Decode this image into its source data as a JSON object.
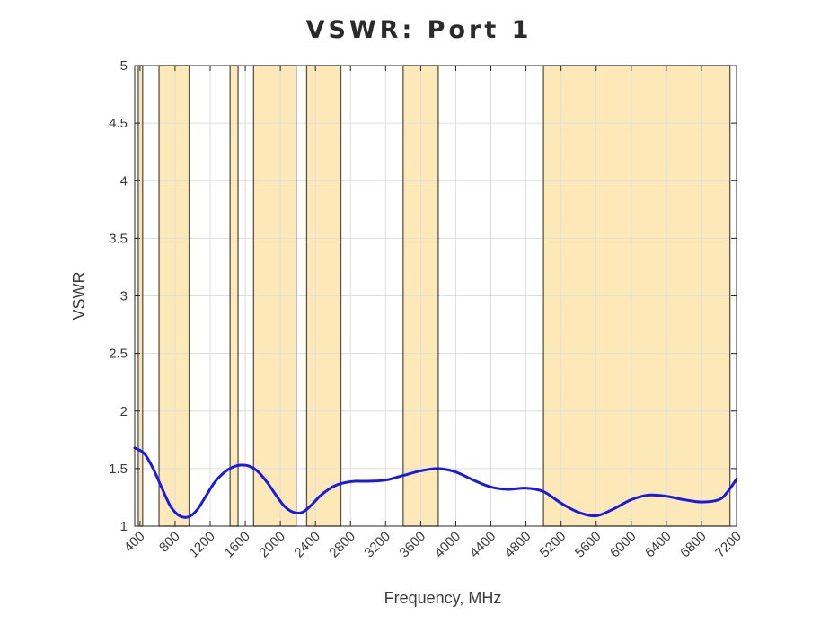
{
  "chart_data": {
    "type": "line",
    "title": "VSWR: Port 1",
    "xlabel": "Frequency, MHz",
    "ylabel": "VSWR",
    "xlim": [
      340,
      7200
    ],
    "ylim": [
      1,
      5
    ],
    "x_ticks": [
      400,
      800,
      1200,
      1600,
      2000,
      2400,
      2800,
      3200,
      3600,
      4000,
      4400,
      4800,
      5200,
      5600,
      6000,
      6400,
      6800,
      7200
    ],
    "y_ticks": [
      1,
      1.5,
      2,
      2.5,
      3,
      3.5,
      4,
      4.5,
      5
    ],
    "y_tick_labels": [
      "1",
      "1.5",
      "2",
      "2.5",
      "3",
      "3.5",
      "4",
      "4.5",
      "5"
    ],
    "grid": true,
    "shaded_bands": [
      {
        "x_start": 380,
        "x_end": 430
      },
      {
        "x_start": 617,
        "x_end": 960
      },
      {
        "x_start": 1427,
        "x_end": 1518
      },
      {
        "x_start": 1695,
        "x_end": 2180
      },
      {
        "x_start": 2300,
        "x_end": 2690
      },
      {
        "x_start": 3400,
        "x_end": 3800
      },
      {
        "x_start": 5000,
        "x_end": 7125
      }
    ],
    "band_color": "#fde7b0",
    "line_color": "#1a1ae6",
    "series": [
      {
        "x": [
          340,
          450,
          550,
          650,
          750,
          850,
          950,
          1050,
          1150,
          1250,
          1350,
          1450,
          1550,
          1650,
          1750,
          1850,
          1950,
          2050,
          2150,
          2250,
          2350,
          2450,
          2550,
          2650,
          2750,
          2850,
          3000,
          3200,
          3400,
          3600,
          3800,
          4000,
          4200,
          4400,
          4600,
          4800,
          5000,
          5200,
          5400,
          5600,
          5800,
          6000,
          6200,
          6400,
          6600,
          6800,
          7000,
          7100,
          7200
        ],
        "y": [
          1.68,
          1.63,
          1.5,
          1.33,
          1.17,
          1.09,
          1.08,
          1.14,
          1.26,
          1.38,
          1.46,
          1.51,
          1.53,
          1.52,
          1.47,
          1.38,
          1.27,
          1.17,
          1.12,
          1.12,
          1.18,
          1.26,
          1.32,
          1.36,
          1.38,
          1.39,
          1.39,
          1.4,
          1.44,
          1.48,
          1.5,
          1.47,
          1.4,
          1.34,
          1.32,
          1.33,
          1.3,
          1.2,
          1.12,
          1.09,
          1.15,
          1.23,
          1.27,
          1.26,
          1.23,
          1.21,
          1.23,
          1.3,
          1.41
        ]
      }
    ]
  }
}
